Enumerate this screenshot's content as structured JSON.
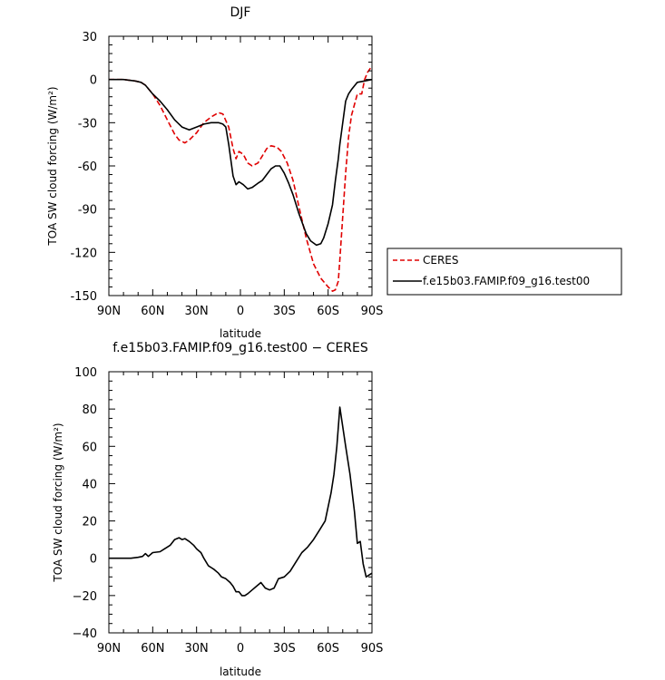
{
  "chart_data": [
    {
      "type": "line",
      "title": "DJF",
      "xlabel": "latitude",
      "ylabel": "TOA SW cloud forcing (W/m²)",
      "xlim": [
        90,
        -90
      ],
      "ylim": [
        -150,
        30
      ],
      "x_ticks": [
        90,
        60,
        30,
        0,
        -30,
        -60,
        -90
      ],
      "x_tick_labels": [
        "90N",
        "60N",
        "30N",
        "0",
        "30S",
        "60S",
        "90S"
      ],
      "y_ticks": [
        30,
        0,
        -30,
        -60,
        -90,
        -120,
        -150
      ],
      "y_tick_labels": [
        "30",
        "0",
        "-30",
        "-60",
        "-90",
        "-120",
        "-150"
      ],
      "legend_position": "right",
      "series": [
        {
          "name": "CERES",
          "color": "#e00000",
          "dash": true,
          "x": [
            90,
            80,
            72,
            68,
            65,
            60,
            55,
            50,
            45,
            42,
            38,
            35,
            30,
            25,
            20,
            15,
            12,
            8,
            5,
            3,
            1,
            -2,
            -5,
            -8,
            -12,
            -15,
            -18,
            -21,
            -25,
            -28,
            -32,
            -36,
            -40,
            -45,
            -50,
            -55,
            -60,
            -63,
            -65,
            -67,
            -68,
            -70,
            -72,
            -74,
            -76,
            -80,
            -83,
            -85,
            -87,
            -89,
            -90
          ],
          "y": [
            0,
            0,
            -1,
            -2,
            -4,
            -10,
            -18,
            -28,
            -38,
            -42,
            -44,
            -42,
            -37,
            -30,
            -26,
            -23,
            -24,
            -33,
            -48,
            -55,
            -50,
            -52,
            -58,
            -60,
            -58,
            -53,
            -48,
            -46,
            -47,
            -50,
            -58,
            -70,
            -88,
            -110,
            -128,
            -138,
            -144,
            -147,
            -146,
            -140,
            -125,
            -95,
            -65,
            -40,
            -25,
            -10,
            -10,
            0,
            5,
            8,
            8
          ]
        },
        {
          "name": "f.e15b03.FAMIP.f09_g16.test00",
          "color": "#000000",
          "dash": false,
          "x": [
            90,
            80,
            72,
            68,
            65,
            60,
            55,
            50,
            45,
            40,
            35,
            30,
            25,
            20,
            15,
            12,
            10,
            8,
            5,
            3,
            1,
            -2,
            -5,
            -8,
            -12,
            -15,
            -18,
            -21,
            -24,
            -27,
            -30,
            -33,
            -36,
            -40,
            -45,
            -48,
            -52,
            -55,
            -57,
            -60,
            -63,
            -65,
            -67,
            -68,
            -70,
            -72,
            -74,
            -76,
            -80,
            -85,
            -90
          ],
          "y": [
            0,
            0,
            -1,
            -2,
            -4,
            -10,
            -15,
            -21,
            -28,
            -33,
            -35,
            -33,
            -31,
            -30,
            -30,
            -31,
            -33,
            -45,
            -67,
            -73,
            -71,
            -73,
            -76,
            -75,
            -72,
            -70,
            -66,
            -62,
            -60,
            -60,
            -65,
            -72,
            -80,
            -93,
            -107,
            -112,
            -115,
            -114,
            -110,
            -100,
            -87,
            -70,
            -55,
            -45,
            -30,
            -15,
            -10,
            -7,
            -2,
            -1,
            0
          ]
        }
      ]
    },
    {
      "type": "line",
      "title": "f.e15b03.FAMIP.f09_g16.test00 − CERES",
      "xlabel": "latitude",
      "ylabel": "TOA SW cloud forcing (W/m²)",
      "xlim": [
        90,
        -90
      ],
      "ylim": [
        -40,
        100
      ],
      "x_ticks": [
        90,
        60,
        30,
        0,
        -30,
        -60,
        -90
      ],
      "x_tick_labels": [
        "90N",
        "60N",
        "30N",
        "0",
        "30S",
        "60S",
        "90S"
      ],
      "y_ticks": [
        100,
        80,
        60,
        40,
        20,
        0,
        -20,
        -40
      ],
      "y_tick_labels": [
        "100",
        "80",
        "60",
        "40",
        "20",
        "0",
        "−20",
        "−40"
      ],
      "series": [
        {
          "color": "#000000",
          "dash": false,
          "x": [
            90,
            75,
            70,
            67,
            65,
            63,
            60,
            55,
            52,
            50,
            48,
            45,
            42,
            40,
            38,
            35,
            32,
            30,
            27,
            25,
            22,
            20,
            18,
            15,
            13,
            10,
            7,
            5,
            3,
            1,
            -1,
            -3,
            -5,
            -8,
            -11,
            -14,
            -17,
            -20,
            -23,
            -26,
            -30,
            -34,
            -38,
            -42,
            -46,
            -50,
            -54,
            -58,
            -62,
            -64,
            -66,
            -68,
            -72,
            -75,
            -78,
            -80,
            -82,
            -84,
            -86,
            -88,
            -90
          ],
          "y": [
            0,
            0,
            0.5,
            1,
            2.5,
            1,
            3,
            3.5,
            5,
            6,
            7,
            10,
            11,
            10,
            10.5,
            9,
            7,
            5,
            3,
            0,
            -4,
            -5,
            -6,
            -8,
            -10,
            -11,
            -13,
            -15,
            -18,
            -18,
            -20,
            -20,
            -19,
            -17,
            -15,
            -13,
            -16,
            -17,
            -16,
            -11,
            -10,
            -7,
            -2,
            3,
            6,
            10,
            15,
            20,
            35,
            45,
            60,
            81,
            60,
            45,
            25,
            8,
            9,
            -3,
            -10,
            -9,
            -8
          ]
        }
      ]
    }
  ]
}
